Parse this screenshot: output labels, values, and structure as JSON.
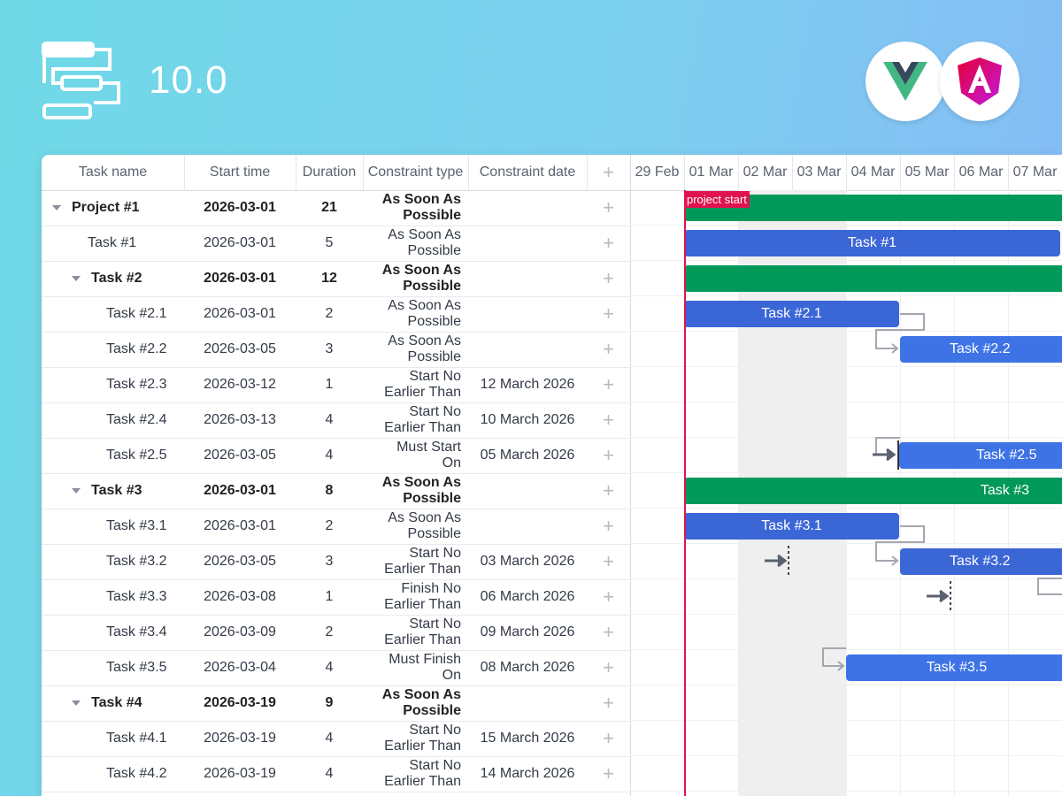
{
  "header": {
    "version": "10.0",
    "logo_icon": "gantt-logo-icon",
    "frameworks": [
      "vue-logo",
      "angular-logo"
    ]
  },
  "grid": {
    "columns": [
      "Task name",
      "Start time",
      "Duration",
      "Constraint type",
      "Constraint date",
      "+"
    ],
    "rows": [
      {
        "name": "Project #1",
        "start": "2026-03-01",
        "duration": "21",
        "ctype": "As Soon As Possible",
        "cdate": ""
      },
      {
        "name": "Task #1",
        "start": "2026-03-01",
        "duration": "5",
        "ctype": "As Soon As Possible",
        "cdate": ""
      },
      {
        "name": "Task #2",
        "start": "2026-03-01",
        "duration": "12",
        "ctype": "As Soon As Possible",
        "cdate": ""
      },
      {
        "name": "Task #2.1",
        "start": "2026-03-01",
        "duration": "2",
        "ctype": "As Soon As Possible",
        "cdate": ""
      },
      {
        "name": "Task #2.2",
        "start": "2026-03-05",
        "duration": "3",
        "ctype": "As Soon As Possible",
        "cdate": ""
      },
      {
        "name": "Task #2.3",
        "start": "2026-03-12",
        "duration": "1",
        "ctype": "Start No Earlier Than",
        "cdate": "12 March 2026"
      },
      {
        "name": "Task #2.4",
        "start": "2026-03-13",
        "duration": "4",
        "ctype": "Start No Earlier Than",
        "cdate": "10 March 2026"
      },
      {
        "name": "Task #2.5",
        "start": "2026-03-05",
        "duration": "4",
        "ctype": "Must Start On",
        "cdate": "05 March 2026"
      },
      {
        "name": "Task #3",
        "start": "2026-03-01",
        "duration": "8",
        "ctype": "As Soon As Possible",
        "cdate": ""
      },
      {
        "name": "Task #3.1",
        "start": "2026-03-01",
        "duration": "2",
        "ctype": "As Soon As Possible",
        "cdate": ""
      },
      {
        "name": "Task #3.2",
        "start": "2026-03-05",
        "duration": "3",
        "ctype": "Start No Earlier Than",
        "cdate": "03 March 2026"
      },
      {
        "name": "Task #3.3",
        "start": "2026-03-08",
        "duration": "1",
        "ctype": "Finish No Earlier Than",
        "cdate": "06 March 2026"
      },
      {
        "name": "Task #3.4",
        "start": "2026-03-09",
        "duration": "2",
        "ctype": "Start No Earlier Than",
        "cdate": "09 March 2026"
      },
      {
        "name": "Task #3.5",
        "start": "2026-03-04",
        "duration": "4",
        "ctype": "Must Finish On",
        "cdate": "08 March 2026"
      },
      {
        "name": "Task #4",
        "start": "2026-03-19",
        "duration": "9",
        "ctype": "As Soon As Possible",
        "cdate": ""
      },
      {
        "name": "Task #4.1",
        "start": "2026-03-19",
        "duration": "4",
        "ctype": "Start No Earlier Than",
        "cdate": "15 March 2026"
      },
      {
        "name": "Task #4.2",
        "start": "2026-03-19",
        "duration": "4",
        "ctype": "Start No Earlier Than",
        "cdate": "14 March 2026"
      }
    ]
  },
  "timeline": {
    "scale": [
      "29 Feb",
      "01 Mar",
      "02 Mar",
      "03 Mar",
      "04 Mar",
      "05 Mar",
      "06 Mar",
      "07 Mar"
    ],
    "marker_label": "project start",
    "bars": [
      {
        "label": ""
      },
      {
        "label": "Task #1"
      },
      {
        "label": ""
      },
      {
        "label": "Task #2.1"
      },
      {
        "label": "Task #2.2"
      },
      {
        "label": ""
      },
      {
        "label": ""
      },
      {
        "label": "Task #2.5"
      },
      {
        "label": "Task #3"
      },
      {
        "label": "Task #3.1"
      },
      {
        "label": "Task #3.2"
      },
      {
        "label": ""
      },
      {
        "label": ""
      },
      {
        "label": "Task #3.5"
      },
      {
        "label": ""
      },
      {
        "label": ""
      },
      {
        "label": ""
      }
    ]
  },
  "colors": {
    "task": "#3b66d6",
    "project": "#00995a",
    "marker": "#e01250"
  }
}
